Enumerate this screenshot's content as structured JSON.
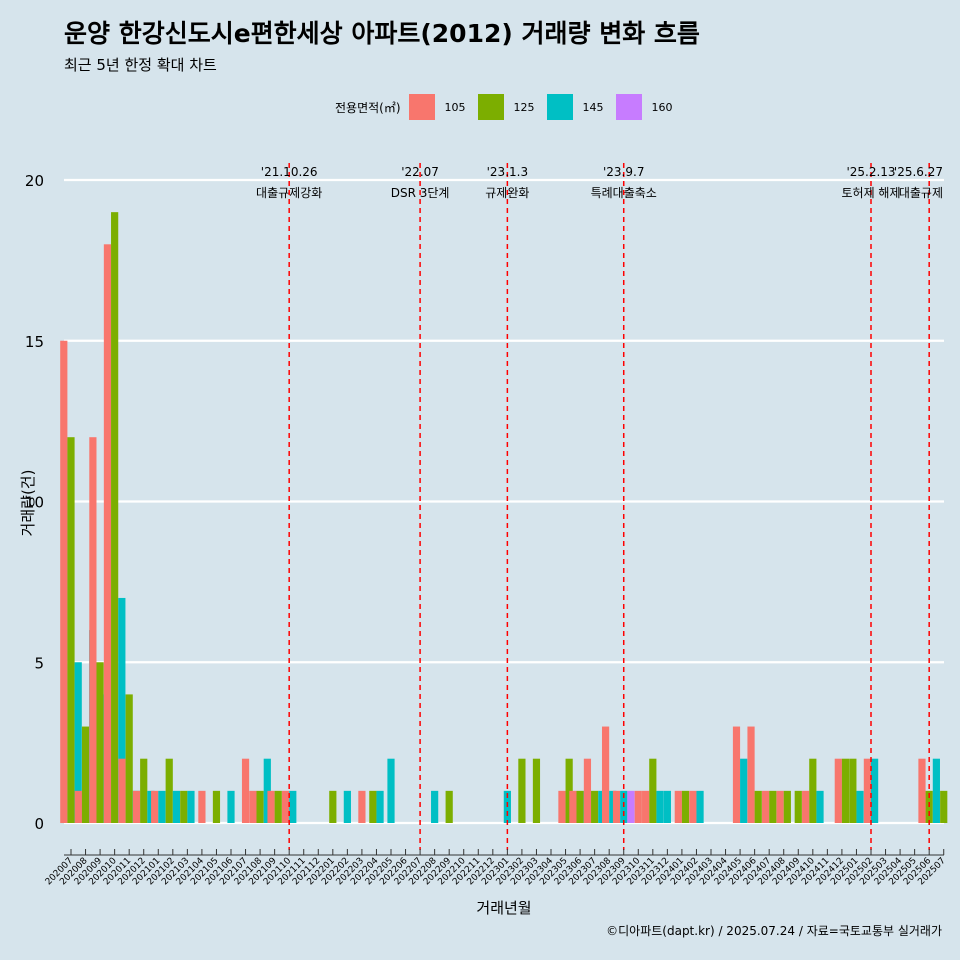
{
  "title": "운양 한강신도시e편한세상 아파트(2012) 거래량 변화 흐름",
  "subtitle": "최근 5년 한정 확대 차트",
  "caption": "©디아파트(dapt.kr) / 2025.07.24 / 자료=국토교통부 실거래가",
  "legend": {
    "title": "전용면적(㎡)",
    "items": [
      {
        "label": "105",
        "color": "#f8766d"
      },
      {
        "label": "125",
        "color": "#7cae00"
      },
      {
        "label": "145",
        "color": "#00bfc4"
      },
      {
        "label": "160",
        "color": "#c77cff"
      }
    ]
  },
  "chart_data": {
    "type": "bar",
    "xlabel": "거래년월",
    "ylabel": "거래량(건)",
    "ylim": [
      0,
      20
    ],
    "yticks": [
      0,
      5,
      10,
      15,
      20
    ],
    "categories": [
      "202007",
      "202008",
      "202009",
      "202010",
      "202011",
      "202012",
      "202101",
      "202102",
      "202103",
      "202104",
      "202105",
      "202106",
      "202107",
      "202108",
      "202109",
      "202110",
      "202111",
      "202112",
      "202201",
      "202202",
      "202203",
      "202204",
      "202205",
      "202206",
      "202207",
      "202208",
      "202209",
      "202210",
      "202211",
      "202212",
      "202301",
      "202302",
      "202303",
      "202304",
      "202305",
      "202306",
      "202307",
      "202308",
      "202309",
      "202310",
      "202311",
      "202312",
      "202401",
      "202402",
      "202403",
      "202404",
      "202405",
      "202406",
      "202407",
      "202408",
      "202409",
      "202410",
      "202411",
      "202412",
      "202501",
      "202502",
      "202503",
      "202504",
      "202505",
      "202506",
      "202507"
    ],
    "series": [
      {
        "name": "105",
        "color": "#f8766d",
        "values": [
          15,
          1,
          12,
          18,
          2,
          1,
          1,
          0,
          0,
          1,
          0,
          0,
          2,
          1,
          1,
          1,
          0,
          0,
          0,
          0,
          1,
          0,
          0,
          0,
          0,
          0,
          0,
          0,
          0,
          0,
          0,
          0,
          0,
          0,
          1,
          1,
          2,
          3,
          1,
          1,
          1,
          0,
          1,
          1,
          0,
          0,
          3,
          3,
          1,
          1,
          0,
          1,
          0,
          2,
          0,
          2,
          0,
          0,
          0,
          2,
          0
        ]
      },
      {
        "name": "125",
        "color": "#7cae00",
        "values": [
          12,
          3,
          5,
          19,
          4,
          2,
          0,
          2,
          1,
          0,
          1,
          0,
          0,
          1,
          1,
          0,
          0,
          0,
          1,
          0,
          0,
          1,
          0,
          0,
          0,
          0,
          1,
          0,
          0,
          0,
          0,
          2,
          2,
          0,
          2,
          1,
          1,
          0,
          0,
          0,
          2,
          0,
          1,
          0,
          0,
          0,
          0,
          1,
          1,
          1,
          1,
          2,
          0,
          2,
          2,
          0,
          0,
          0,
          0,
          1,
          1
        ]
      },
      {
        "name": "145",
        "color": "#00bfc4",
        "values": [
          5,
          6,
          4,
          7,
          1,
          1,
          1,
          1,
          1,
          0,
          0,
          1,
          0,
          2,
          0,
          1,
          0,
          0,
          0,
          1,
          0,
          1,
          2,
          0,
          0,
          1,
          0,
          0,
          0,
          0,
          1,
          0,
          0,
          0,
          0,
          1,
          1,
          1,
          1,
          0,
          1,
          1,
          0,
          1,
          0,
          0,
          2,
          0,
          0,
          0,
          0,
          1,
          0,
          0,
          1,
          2,
          0,
          0,
          0,
          2,
          0
        ]
      },
      {
        "name": "160",
        "color": "#c77cff",
        "values": [
          0,
          0,
          0,
          0,
          0,
          0,
          0,
          0,
          0,
          0,
          0,
          0,
          0,
          0,
          0,
          0,
          0,
          0,
          0,
          0,
          0,
          0,
          0,
          0,
          0,
          0,
          0,
          0,
          0,
          0,
          0,
          0,
          0,
          0,
          0,
          0,
          0,
          0,
          1,
          0,
          0,
          0,
          0,
          0,
          0,
          0,
          0,
          0,
          0,
          0,
          0,
          0,
          0,
          0,
          0,
          0,
          0,
          0,
          0,
          0,
          0
        ]
      }
    ],
    "annotations": [
      {
        "at": "202110",
        "date": "'21.10.26",
        "label": "대출규제강화"
      },
      {
        "at": "202207",
        "date": "'22.07",
        "label": "DSR 3단계"
      },
      {
        "at": "202301",
        "date": "'23.1.3",
        "label": "규제완화"
      },
      {
        "at": "202309",
        "date": "'23.9.7",
        "label": "특례대출축소"
      },
      {
        "at": "202502",
        "date": "'25.2.13",
        "label": "토허제 해제"
      },
      {
        "at": "202506",
        "date": "'25.6.27",
        "label": "대출규제"
      }
    ],
    "grid": true,
    "legend_position": "top"
  }
}
